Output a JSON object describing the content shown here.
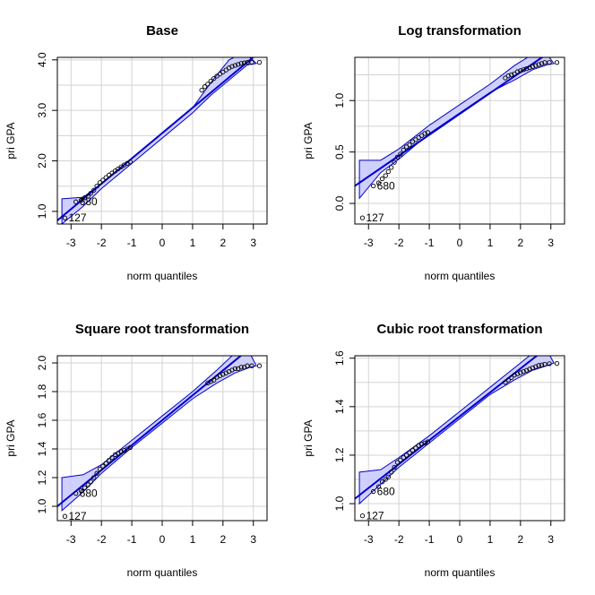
{
  "chart_data": [
    {
      "type": "scatter",
      "title": "Base",
      "xlabel": "norm quantiles",
      "ylabel": "pri GPA",
      "xlim": [
        -3.45,
        3.45
      ],
      "ylim": [
        0.75,
        4.05
      ],
      "xticks": [
        -3,
        -2,
        -1,
        0,
        1,
        2,
        3
      ],
      "yticks": [
        1.0,
        2.0,
        3.0,
        4.0
      ],
      "yticklabels": [
        "1.0",
        "2.0",
        "3.0",
        "4.0"
      ],
      "ygrid": [
        1.0,
        1.5,
        2.0,
        2.5,
        3.0,
        3.5,
        4.0
      ],
      "line": [
        [
          -3.45,
          0.82
        ],
        [
          3.45,
          4.28
        ]
      ],
      "band_top": [
        [
          -3.3,
          1.25
        ],
        [
          -2.6,
          1.28
        ],
        [
          -2.0,
          1.55
        ],
        [
          -1.0,
          2.05
        ],
        [
          0,
          2.55
        ],
        [
          1.0,
          3.05
        ],
        [
          1.6,
          3.55
        ],
        [
          2.2,
          4.0
        ],
        [
          2.7,
          4.15
        ]
      ],
      "band_bottom": [
        [
          -3.3,
          0.75
        ],
        [
          -2.6,
          1.1
        ],
        [
          -2.0,
          1.45
        ],
        [
          -1.0,
          1.95
        ],
        [
          0,
          2.45
        ],
        [
          1.0,
          2.95
        ],
        [
          1.6,
          3.3
        ],
        [
          2.2,
          3.6
        ],
        [
          2.8,
          3.9
        ],
        [
          3.1,
          3.93
        ]
      ],
      "points": [
        [
          -3.2,
          0.87
        ],
        [
          -2.84,
          1.19
        ],
        [
          -2.67,
          1.22
        ],
        [
          -2.55,
          1.27
        ],
        [
          -2.44,
          1.3
        ],
        [
          -2.35,
          1.36
        ],
        [
          -2.25,
          1.42
        ],
        [
          -2.15,
          1.5
        ],
        [
          -2.05,
          1.57
        ],
        [
          -1.95,
          1.62
        ],
        [
          -1.85,
          1.67
        ],
        [
          -1.75,
          1.72
        ],
        [
          -1.65,
          1.76
        ],
        [
          -1.55,
          1.8
        ],
        [
          -1.45,
          1.84
        ],
        [
          -1.35,
          1.88
        ],
        [
          -1.25,
          1.92
        ],
        [
          -1.15,
          1.95
        ],
        [
          -1.05,
          1.98
        ],
        [
          1.3,
          3.4
        ],
        [
          1.4,
          3.47
        ],
        [
          1.5,
          3.52
        ],
        [
          1.6,
          3.58
        ],
        [
          1.7,
          3.63
        ],
        [
          1.8,
          3.68
        ],
        [
          1.9,
          3.72
        ],
        [
          2.0,
          3.76
        ],
        [
          2.1,
          3.8
        ],
        [
          2.2,
          3.84
        ],
        [
          2.3,
          3.87
        ],
        [
          2.4,
          3.89
        ],
        [
          2.5,
          3.91
        ],
        [
          2.6,
          3.93
        ],
        [
          2.7,
          3.94
        ],
        [
          2.8,
          3.95
        ],
        [
          2.95,
          3.95
        ],
        [
          3.2,
          3.95
        ]
      ],
      "annotations": [
        {
          "text": "127",
          "x": -3.2,
          "y": 0.87
        },
        {
          "text": "680",
          "x": -2.84,
          "y": 1.19
        }
      ]
    },
    {
      "type": "scatter",
      "title": "Log transformation",
      "xlabel": "norm quantiles",
      "ylabel": "pri GPA",
      "xlim": [
        -3.45,
        3.45
      ],
      "ylim": [
        -0.2,
        1.42
      ],
      "xticks": [
        -3,
        -2,
        -1,
        0,
        1,
        2,
        3
      ],
      "yticks": [
        0.0,
        0.5,
        1.0
      ],
      "yticklabels": [
        "0.0",
        "0.5",
        "1.0"
      ],
      "ygrid": [
        0.0,
        0.25,
        0.5,
        0.75,
        1.0,
        1.25
      ],
      "line": [
        [
          -3.45,
          0.17
        ],
        [
          3.45,
          1.57
        ]
      ],
      "band_top": [
        [
          -3.3,
          0.42
        ],
        [
          -2.6,
          0.42
        ],
        [
          -2.0,
          0.53
        ],
        [
          -1.0,
          0.76
        ],
        [
          0,
          0.96
        ],
        [
          1.0,
          1.16
        ],
        [
          1.8,
          1.34
        ],
        [
          2.4,
          1.45
        ],
        [
          2.8,
          1.48
        ]
      ],
      "band_bottom": [
        [
          -3.3,
          0.05
        ],
        [
          -2.6,
          0.3
        ],
        [
          -2.0,
          0.43
        ],
        [
          -1.0,
          0.68
        ],
        [
          0,
          0.88
        ],
        [
          1.0,
          1.08
        ],
        [
          1.8,
          1.2
        ],
        [
          2.4,
          1.3
        ],
        [
          2.9,
          1.35
        ],
        [
          3.1,
          1.36
        ]
      ],
      "points": [
        [
          -3.2,
          -0.14
        ],
        [
          -2.84,
          0.17
        ],
        [
          -2.67,
          0.2
        ],
        [
          -2.55,
          0.24
        ],
        [
          -2.44,
          0.27
        ],
        [
          -2.35,
          0.31
        ],
        [
          -2.25,
          0.35
        ],
        [
          -2.15,
          0.4
        ],
        [
          -2.05,
          0.45
        ],
        [
          -1.95,
          0.48
        ],
        [
          -1.85,
          0.52
        ],
        [
          -1.75,
          0.55
        ],
        [
          -1.65,
          0.57
        ],
        [
          -1.55,
          0.6
        ],
        [
          -1.45,
          0.62
        ],
        [
          -1.35,
          0.64
        ],
        [
          -1.25,
          0.66
        ],
        [
          -1.15,
          0.68
        ],
        [
          -1.05,
          0.69
        ],
        [
          1.5,
          1.22
        ],
        [
          1.6,
          1.24
        ],
        [
          1.7,
          1.25
        ],
        [
          1.8,
          1.26
        ],
        [
          1.9,
          1.28
        ],
        [
          2.0,
          1.29
        ],
        [
          2.1,
          1.3
        ],
        [
          2.2,
          1.31
        ],
        [
          2.3,
          1.32
        ],
        [
          2.4,
          1.33
        ],
        [
          2.5,
          1.34
        ],
        [
          2.6,
          1.35
        ],
        [
          2.7,
          1.36
        ],
        [
          2.8,
          1.37
        ],
        [
          2.95,
          1.37
        ],
        [
          3.2,
          1.37
        ]
      ],
      "annotations": [
        {
          "text": "127",
          "x": -3.2,
          "y": -0.14
        },
        {
          "text": "680",
          "x": -2.84,
          "y": 0.17
        }
      ]
    },
    {
      "type": "scatter",
      "title": "Square root transformation",
      "xlabel": "norm quantiles",
      "ylabel": "pri GPA",
      "xlim": [
        -3.45,
        3.45
      ],
      "ylim": [
        0.9,
        2.05
      ],
      "xticks": [
        -3,
        -2,
        -1,
        0,
        1,
        2,
        3
      ],
      "yticks": [
        1.0,
        1.2,
        1.4,
        1.6,
        1.8,
        2.0
      ],
      "yticklabels": [
        "1.0",
        "1.2",
        "1.4",
        "1.6",
        "1.8",
        "2.0"
      ],
      "ygrid": [
        1.0,
        1.2,
        1.4,
        1.6,
        1.8,
        2.0
      ],
      "line": [
        [
          -3.45,
          1.0
        ],
        [
          3.45,
          2.2
        ]
      ],
      "band_top": [
        [
          -3.3,
          1.2
        ],
        [
          -2.6,
          1.22
        ],
        [
          -2.0,
          1.29
        ],
        [
          -1.0,
          1.46
        ],
        [
          0,
          1.63
        ],
        [
          1.0,
          1.8
        ],
        [
          1.8,
          1.95
        ],
        [
          2.3,
          2.05
        ],
        [
          2.8,
          2.1
        ]
      ],
      "band_bottom": [
        [
          -3.3,
          0.97
        ],
        [
          -2.6,
          1.1
        ],
        [
          -2.0,
          1.23
        ],
        [
          -1.0,
          1.41
        ],
        [
          0,
          1.58
        ],
        [
          1.0,
          1.75
        ],
        [
          1.8,
          1.86
        ],
        [
          2.4,
          1.93
        ],
        [
          2.9,
          1.97
        ],
        [
          3.1,
          1.98
        ]
      ],
      "points": [
        [
          -3.2,
          0.93
        ],
        [
          -2.84,
          1.09
        ],
        [
          -2.67,
          1.11
        ],
        [
          -2.55,
          1.13
        ],
        [
          -2.44,
          1.15
        ],
        [
          -2.35,
          1.17
        ],
        [
          -2.25,
          1.2
        ],
        [
          -2.15,
          1.23
        ],
        [
          -2.05,
          1.26
        ],
        [
          -1.95,
          1.28
        ],
        [
          -1.85,
          1.3
        ],
        [
          -1.75,
          1.32
        ],
        [
          -1.65,
          1.34
        ],
        [
          -1.55,
          1.36
        ],
        [
          -1.45,
          1.37
        ],
        [
          -1.35,
          1.38
        ],
        [
          -1.25,
          1.39
        ],
        [
          -1.15,
          1.4
        ],
        [
          -1.05,
          1.41
        ],
        [
          1.5,
          1.86
        ],
        [
          1.6,
          1.87
        ],
        [
          1.7,
          1.88
        ],
        [
          1.8,
          1.9
        ],
        [
          1.9,
          1.91
        ],
        [
          2.0,
          1.92
        ],
        [
          2.1,
          1.93
        ],
        [
          2.2,
          1.94
        ],
        [
          2.3,
          1.95
        ],
        [
          2.4,
          1.96
        ],
        [
          2.5,
          1.96
        ],
        [
          2.6,
          1.97
        ],
        [
          2.7,
          1.97
        ],
        [
          2.8,
          1.98
        ],
        [
          2.95,
          1.98
        ],
        [
          3.2,
          1.98
        ]
      ],
      "annotations": [
        {
          "text": "127",
          "x": -3.2,
          "y": 0.93
        },
        {
          "text": "680",
          "x": -2.84,
          "y": 1.09
        }
      ]
    },
    {
      "type": "scatter",
      "title": "Cubic root transformation",
      "xlabel": "norm quantiles",
      "ylabel": "pri GPA",
      "xlim": [
        -3.45,
        3.45
      ],
      "ylim": [
        0.93,
        1.61
      ],
      "xticks": [
        -3,
        -2,
        -1,
        0,
        1,
        2,
        3
      ],
      "yticks": [
        1.0,
        1.2,
        1.4,
        1.6
      ],
      "yticklabels": [
        "1.0",
        "1.2",
        "1.4",
        "1.6"
      ],
      "ygrid": [
        1.0,
        1.1,
        1.2,
        1.3,
        1.4,
        1.5,
        1.6
      ],
      "line": [
        [
          -3.45,
          1.02
        ],
        [
          3.45,
          1.7
        ]
      ],
      "band_top": [
        [
          -3.3,
          1.13
        ],
        [
          -2.6,
          1.14
        ],
        [
          -2.0,
          1.19
        ],
        [
          -1.0,
          1.28
        ],
        [
          0,
          1.38
        ],
        [
          1.0,
          1.48
        ],
        [
          1.8,
          1.56
        ],
        [
          2.4,
          1.62
        ],
        [
          2.8,
          1.65
        ]
      ],
      "band_bottom": [
        [
          -3.3,
          1.0
        ],
        [
          -2.6,
          1.08
        ],
        [
          -2.0,
          1.15
        ],
        [
          -1.0,
          1.25
        ],
        [
          0,
          1.35
        ],
        [
          1.0,
          1.45
        ],
        [
          1.8,
          1.51
        ],
        [
          2.4,
          1.55
        ],
        [
          2.9,
          1.57
        ],
        [
          3.1,
          1.58
        ]
      ],
      "points": [
        [
          -3.2,
          0.95
        ],
        [
          -2.84,
          1.05
        ],
        [
          -2.67,
          1.07
        ],
        [
          -2.55,
          1.09
        ],
        [
          -2.44,
          1.1
        ],
        [
          -2.35,
          1.11
        ],
        [
          -2.25,
          1.13
        ],
        [
          -2.15,
          1.15
        ],
        [
          -2.05,
          1.17
        ],
        [
          -1.95,
          1.18
        ],
        [
          -1.85,
          1.19
        ],
        [
          -1.75,
          1.2
        ],
        [
          -1.65,
          1.21
        ],
        [
          -1.55,
          1.22
        ],
        [
          -1.45,
          1.23
        ],
        [
          -1.35,
          1.24
        ],
        [
          -1.25,
          1.245
        ],
        [
          -1.15,
          1.25
        ],
        [
          -1.05,
          1.255
        ],
        [
          1.5,
          1.5
        ],
        [
          1.6,
          1.51
        ],
        [
          1.7,
          1.52
        ],
        [
          1.8,
          1.53
        ],
        [
          1.9,
          1.535
        ],
        [
          2.0,
          1.54
        ],
        [
          2.1,
          1.545
        ],
        [
          2.2,
          1.55
        ],
        [
          2.3,
          1.555
        ],
        [
          2.4,
          1.56
        ],
        [
          2.5,
          1.565
        ],
        [
          2.6,
          1.57
        ],
        [
          2.7,
          1.572
        ],
        [
          2.8,
          1.575
        ],
        [
          2.95,
          1.577
        ],
        [
          3.2,
          1.578
        ]
      ],
      "annotations": [
        {
          "text": "127",
          "x": -3.2,
          "y": 0.95
        },
        {
          "text": "680",
          "x": -2.84,
          "y": 1.05
        }
      ]
    }
  ],
  "colors": {
    "band_fill": "#c8c8ff",
    "band_edge": "#0000cc",
    "line": "#0000cc",
    "grid": "#d3d3d3",
    "points": "#000000"
  }
}
